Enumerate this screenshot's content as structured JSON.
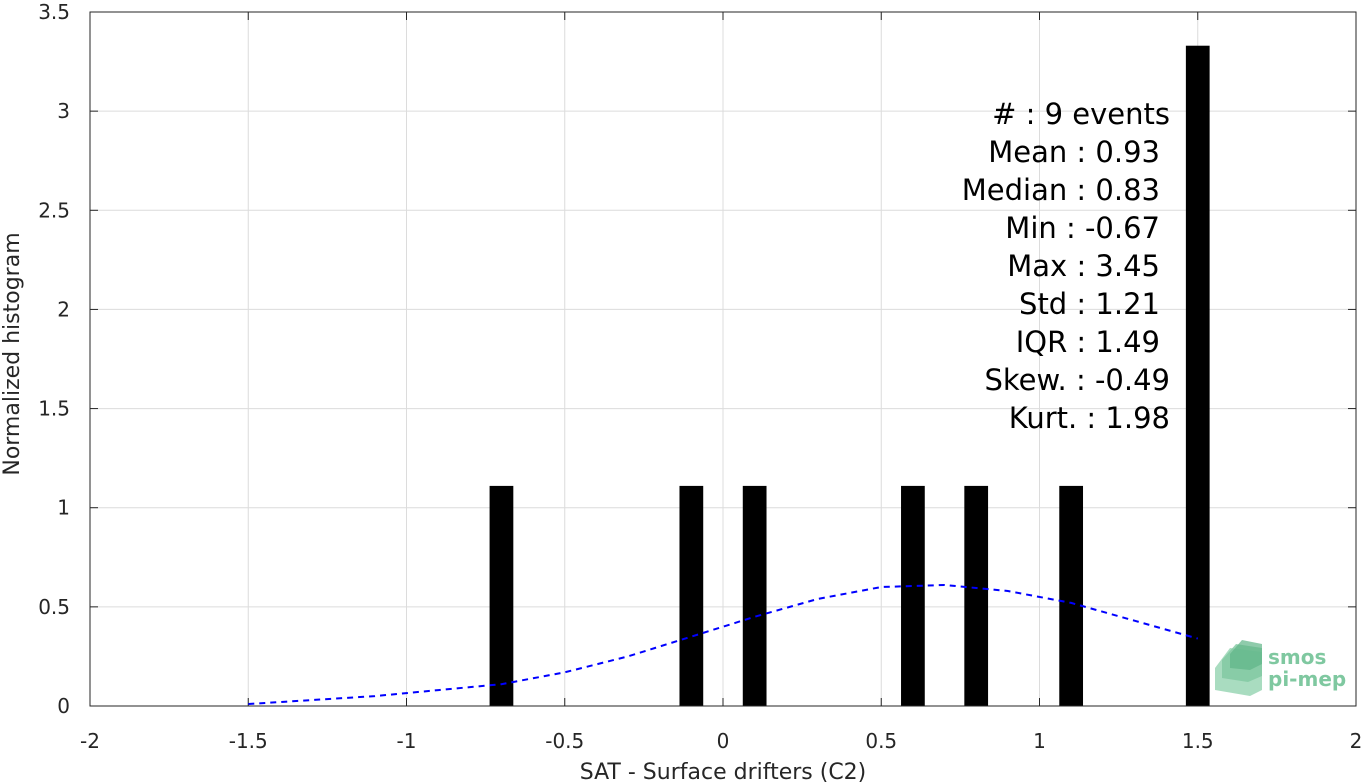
{
  "chart_data": {
    "type": "bar",
    "xlabel": "SAT - Surface drifters (C2)",
    "ylabel": "Normalized histogram",
    "xlim": [
      -2,
      2
    ],
    "ylim": [
      0,
      3.5
    ],
    "xticks": [
      -2,
      -1.5,
      -1,
      -0.5,
      0,
      0.5,
      1,
      1.5,
      2
    ],
    "yticks": [
      0,
      0.5,
      1,
      1.5,
      2,
      2.5,
      3,
      3.5
    ],
    "grid": true,
    "bar_width": 0.075,
    "bars": [
      {
        "x": -0.7,
        "value": 1.11
      },
      {
        "x": -0.1,
        "value": 1.11
      },
      {
        "x": 0.1,
        "value": 1.11
      },
      {
        "x": 0.6,
        "value": 1.11
      },
      {
        "x": 0.8,
        "value": 1.11
      },
      {
        "x": 1.1,
        "value": 1.11
      },
      {
        "x": 1.5,
        "value": 3.33
      }
    ],
    "fit_curve": {
      "style": "dashed",
      "color": "#0000ff",
      "x": [
        -1.5,
        -1.3,
        -1.1,
        -0.9,
        -0.7,
        -0.5,
        -0.3,
        -0.1,
        0.1,
        0.3,
        0.5,
        0.7,
        0.9,
        1.1,
        1.3,
        1.5
      ],
      "y": [
        0.01,
        0.03,
        0.05,
        0.08,
        0.11,
        0.17,
        0.25,
        0.35,
        0.45,
        0.54,
        0.6,
        0.61,
        0.58,
        0.52,
        0.43,
        0.34
      ]
    },
    "bar_color": "#000000",
    "stats": [
      "#  : 9 events",
      "Mean : 0.93",
      "Median : 0.83",
      "Min : -0.67",
      "Max : 3.45",
      "Std : 1.21",
      "IQR : 1.49",
      "Skew. : -0.49",
      "Kurt. : 1.98"
    ]
  },
  "logo": {
    "line1": "smos",
    "line2": "pi-mep",
    "color": "#7fc8a0"
  }
}
